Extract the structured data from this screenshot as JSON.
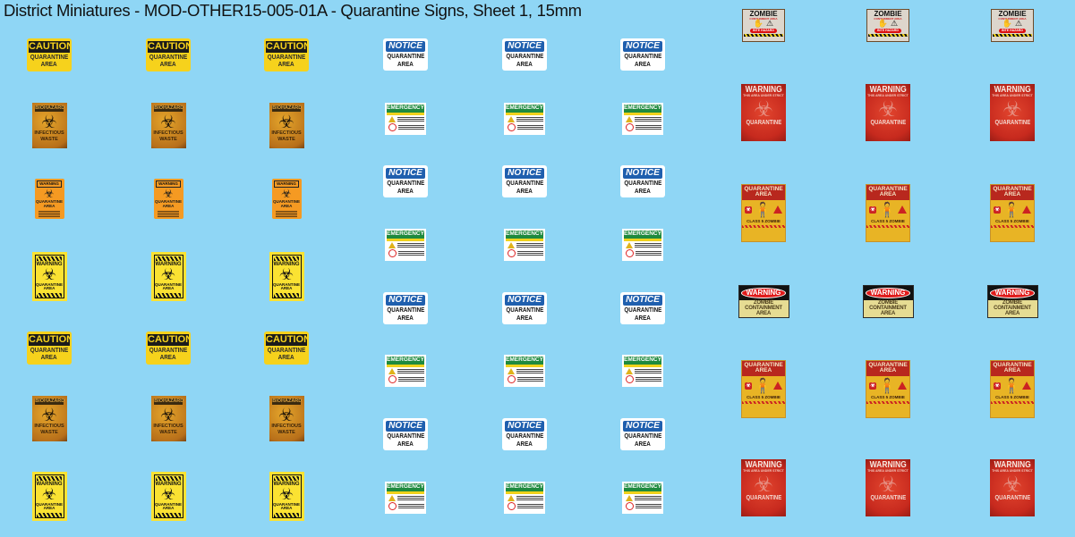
{
  "title": "District Miniatures - MOD-OTHER15-005-01A - Quarantine Signs, Sheet 1, 15mm",
  "background_color": "#8fd6f5",
  "sign_types": {
    "caution": {
      "header": "CAUTION",
      "line1": "QUARANTINE",
      "line2": "AREA",
      "icon": ""
    },
    "biohazard": {
      "header": "BIOHAZARD",
      "line1": "INFECTIOUS",
      "line2": "WASTE",
      "icon": "biohazard-icon"
    },
    "worange": {
      "header": "WARNING",
      "line1": "QUARANTINE",
      "line2": "AREA",
      "icon": "biohazard-icon"
    },
    "wyellow": {
      "header": "WARNING",
      "line1": "QUARANTINE",
      "line2": "AREA",
      "icon": "biohazard-icon"
    },
    "notice": {
      "header": "NOTICE",
      "line1": "QUARANTINE",
      "line2": "AREA",
      "icon": ""
    },
    "emergency": {
      "header": "EMERGENCY",
      "line1": "",
      "line2": "",
      "icon": "warning-triangle-icon"
    },
    "zombie": {
      "header": "ZOMBIE",
      "line1": "CONTAINMENT AREA",
      "line2": "BITE HAZARD",
      "icon": "zombie-hand-icon"
    },
    "wred": {
      "header": "WARNING",
      "line1": "THIS AREA UNDER STRICT",
      "line2": "QUARANTINE",
      "icon": "biohazard-icon"
    },
    "qarea": {
      "header": "QUARANTINE",
      "line1": "AREA",
      "line2": "CLASS 5 ZOMBIE",
      "icon": "zombie-figure-icon"
    },
    "wzombie": {
      "header": "WARNING",
      "line1": "ZOMBIE",
      "line2": "CONTAINMENT",
      "line3": "AREA",
      "icon": ""
    }
  },
  "groups": [
    {
      "rows": [
        "caution",
        "biohazard",
        "worange",
        "wyellow",
        "caution",
        "biohazard",
        "wyellow"
      ],
      "copies": 3
    },
    {
      "rows": [
        "notice",
        "emergency",
        "notice",
        "emergency",
        "notice",
        "emergency",
        "notice",
        "emergency"
      ],
      "copies": 3
    },
    {
      "rows": [
        "zombie",
        "wred",
        "qarea",
        "wzombie",
        "qarea",
        "wred"
      ],
      "copies": 3
    }
  ]
}
